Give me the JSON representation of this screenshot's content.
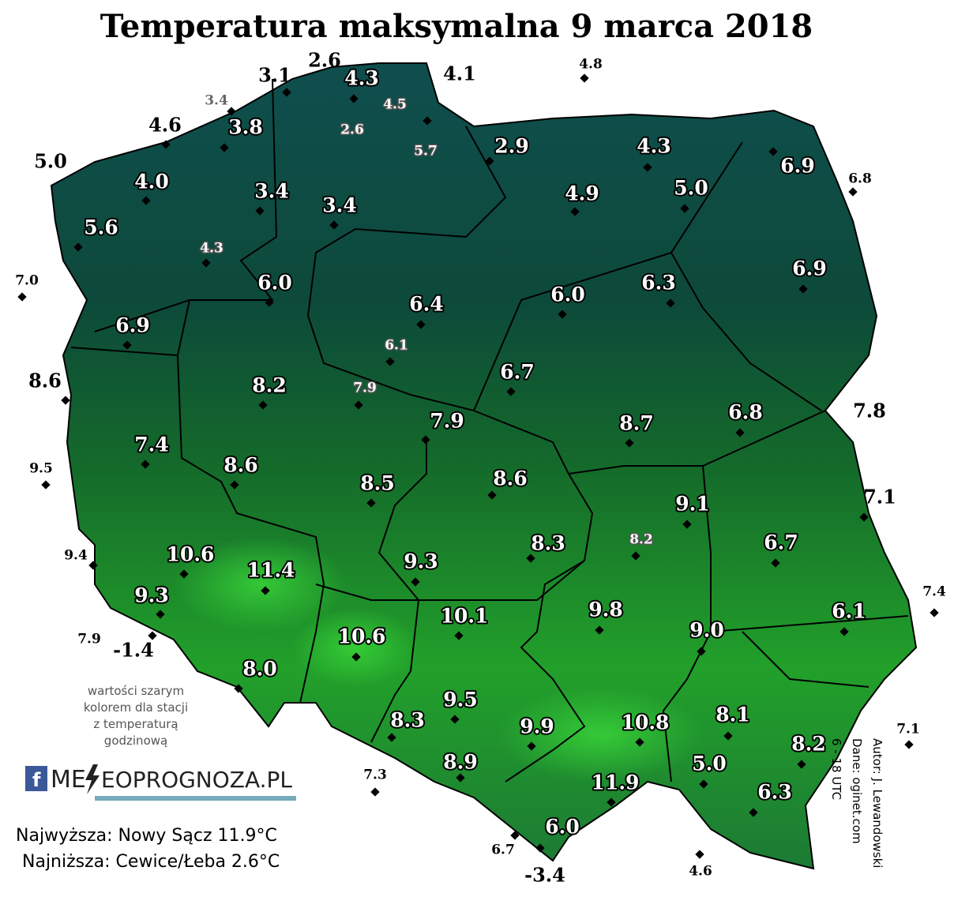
{
  "title": "Temperatura maksymalna 9 marca 2018",
  "stations": [
    {
      "label": "3.1",
      "style": "out"
    },
    {
      "label": "2.6",
      "style": "out"
    },
    {
      "label": "4.3",
      "style": "in"
    },
    {
      "label": "4.1",
      "style": "out"
    },
    {
      "label": "4.8",
      "style": "outsmall"
    },
    {
      "label": "3.4",
      "style": "grayout"
    },
    {
      "label": "4.5",
      "style": "gray"
    },
    {
      "label": "3.8",
      "style": "in"
    },
    {
      "label": "2.6",
      "style": "gray"
    },
    {
      "label": "4.6",
      "style": "out"
    },
    {
      "label": "5.7",
      "style": "gray"
    },
    {
      "label": "2.9",
      "style": "in"
    },
    {
      "label": "4.3",
      "style": "in"
    },
    {
      "label": "6.9",
      "style": "in"
    },
    {
      "label": "6.8",
      "style": "outsmall"
    },
    {
      "label": "5.0",
      "style": "out"
    },
    {
      "label": "4.0",
      "style": "in"
    },
    {
      "label": "3.4",
      "style": "in"
    },
    {
      "label": "3.4",
      "style": "in"
    },
    {
      "label": "4.9",
      "style": "in"
    },
    {
      "label": "5.0",
      "style": "in"
    },
    {
      "label": "5.6",
      "style": "in"
    },
    {
      "label": "4.3",
      "style": "gray"
    },
    {
      "label": "6.9",
      "style": "in"
    },
    {
      "label": "7.0",
      "style": "outsmall"
    },
    {
      "label": "6.0",
      "style": "in"
    },
    {
      "label": "6.4",
      "style": "in"
    },
    {
      "label": "6.0",
      "style": "in"
    },
    {
      "label": "6.3",
      "style": "in"
    },
    {
      "label": "6.9",
      "style": "in"
    },
    {
      "label": "6.1",
      "style": "gray"
    },
    {
      "label": "6.7",
      "style": "in"
    },
    {
      "label": "8.6",
      "style": "out"
    },
    {
      "label": "8.2",
      "style": "in"
    },
    {
      "label": "7.9",
      "style": "gray"
    },
    {
      "label": "7.9",
      "style": "in"
    },
    {
      "label": "8.7",
      "style": "in"
    },
    {
      "label": "6.8",
      "style": "in"
    },
    {
      "label": "7.8",
      "style": "out"
    },
    {
      "label": "7.4",
      "style": "in"
    },
    {
      "label": "9.5",
      "style": "outsmall"
    },
    {
      "label": "8.6",
      "style": "in"
    },
    {
      "label": "8.5",
      "style": "in"
    },
    {
      "label": "8.6",
      "style": "in"
    },
    {
      "label": "9.1",
      "style": "in"
    },
    {
      "label": "7.1",
      "style": "out"
    },
    {
      "label": "8.2",
      "style": "gray"
    },
    {
      "label": "8.3",
      "style": "in"
    },
    {
      "label": "6.7",
      "style": "in"
    },
    {
      "label": "9.4",
      "style": "outsmall"
    },
    {
      "label": "10.6",
      "style": "in"
    },
    {
      "label": "11.4",
      "style": "in"
    },
    {
      "label": "9.3",
      "style": "in"
    },
    {
      "label": "7.4",
      "style": "outsmall"
    },
    {
      "label": "9.3",
      "style": "in"
    },
    {
      "label": "9.8",
      "style": "in"
    },
    {
      "label": "6.1",
      "style": "in"
    },
    {
      "label": "10.1",
      "style": "in"
    },
    {
      "label": "9.0",
      "style": "in"
    },
    {
      "label": "7.9",
      "style": "outsmall"
    },
    {
      "label": "-1.4",
      "style": "out"
    },
    {
      "label": "10.6",
      "style": "in"
    },
    {
      "label": "8.0",
      "style": "in"
    },
    {
      "label": "9.5",
      "style": "in"
    },
    {
      "label": "8.1",
      "style": "in"
    },
    {
      "label": "10.8",
      "style": "in"
    },
    {
      "label": "8.3",
      "style": "in"
    },
    {
      "label": "9.9",
      "style": "in"
    },
    {
      "label": "8.2",
      "style": "in"
    },
    {
      "label": "7.1",
      "style": "outsmall"
    },
    {
      "label": "8.9",
      "style": "in"
    },
    {
      "label": "7.3",
      "style": "outsmall"
    },
    {
      "label": "5.0",
      "style": "in"
    },
    {
      "label": "11.9",
      "style": "in"
    },
    {
      "label": "6.3",
      "style": "in"
    },
    {
      "label": "6.0",
      "style": "in"
    },
    {
      "label": "6.7",
      "style": "outsmall"
    },
    {
      "label": "-3.4",
      "style": "out"
    },
    {
      "label": "4.6",
      "style": "outsmall"
    }
  ],
  "note": [
    "wartości szarym",
    "kolorem dla stacji",
    "z temperaturą",
    "godzinową"
  ],
  "logo": [
    "ME",
    "EOPROGNOZA.PL"
  ],
  "summary": [
    "Najwyższa: Nowy Sącz 11.9°C",
    "Najniższa: Cewice/Łeba 2.6°C"
  ],
  "credits": [
    "Autor: J. Lewandowski",
    "Dane: oginet.com",
    "6 - 18 UTC"
  ]
}
